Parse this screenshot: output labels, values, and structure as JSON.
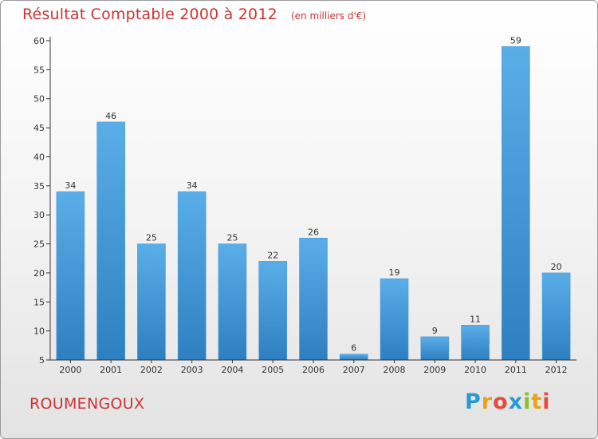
{
  "title": "Résultat Comptable 2000 à 2012",
  "unit": "(en milliers d'€)",
  "commune": "ROUMENGOUX",
  "logo": {
    "letters": [
      "P",
      "r",
      "o",
      "x",
      "i",
      "t",
      "i"
    ],
    "colors": [
      "#2a9ad6",
      "#e8a21b",
      "#e64a3a",
      "#2a9ad6",
      "#8bbf2a",
      "#e8a21b",
      "#e64a3a"
    ]
  },
  "colors": {
    "bar_light": "#5aaee8",
    "bar_dark": "#2e7fc0",
    "axis": "#333333",
    "title": "#cc3333"
  },
  "chart_data": {
    "type": "bar",
    "title": "Résultat Comptable 2000 à 2012",
    "ylabel": "(en milliers d'€)",
    "xlabel": "",
    "categories": [
      "2000",
      "2001",
      "2002",
      "2003",
      "2004",
      "2005",
      "2006",
      "2007",
      "2008",
      "2009",
      "2010",
      "2011",
      "2012"
    ],
    "values": [
      34,
      46,
      25,
      34,
      25,
      22,
      26,
      6,
      19,
      9,
      11,
      59,
      20
    ],
    "ylim": [
      5,
      60
    ],
    "yticks": [
      5,
      10,
      15,
      20,
      25,
      30,
      35,
      40,
      45,
      50,
      55,
      60
    ],
    "grid": false
  }
}
